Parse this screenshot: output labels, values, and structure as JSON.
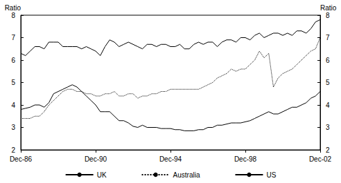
{
  "chart_data": {
    "type": "line",
    "ylabel": "Ratio",
    "y2label": "Ratio",
    "categories": [
      "Dec-86",
      null,
      null,
      null,
      null,
      null,
      null,
      null,
      null,
      null,
      null,
      null,
      null,
      null,
      null,
      null,
      "Dec-90",
      null,
      null,
      null,
      null,
      null,
      null,
      null,
      null,
      null,
      null,
      null,
      null,
      null,
      null,
      null,
      "Dec-94",
      null,
      null,
      null,
      null,
      null,
      null,
      null,
      null,
      null,
      null,
      null,
      null,
      null,
      null,
      null,
      "Dec-98",
      null,
      null,
      null,
      null,
      null,
      null,
      null,
      null,
      null,
      null,
      null,
      null,
      null,
      null,
      null,
      "Dec-02"
    ],
    "series": [
      {
        "name": "UK",
        "color": "#000000",
        "line_style": "solid",
        "values": [
          3.8,
          3.85,
          3.9,
          4.0,
          4.0,
          3.9,
          4.1,
          4.5,
          4.6,
          4.7,
          4.8,
          4.9,
          4.8,
          4.6,
          4.4,
          4.2,
          4.0,
          3.7,
          3.7,
          3.7,
          3.5,
          3.3,
          3.3,
          3.2,
          3.05,
          3.0,
          3.1,
          3.0,
          3.0,
          3.0,
          2.95,
          2.95,
          2.95,
          2.9,
          2.9,
          2.85,
          2.85,
          2.85,
          2.9,
          2.9,
          3.0,
          3.0,
          3.1,
          3.1,
          3.15,
          3.2,
          3.2,
          3.2,
          3.25,
          3.3,
          3.4,
          3.5,
          3.6,
          3.7,
          3.6,
          3.6,
          3.7,
          3.8,
          3.9,
          3.9,
          4.0,
          4.1,
          4.3,
          4.4,
          4.6
        ]
      },
      {
        "name": "Australia",
        "color": "#000000",
        "line_style": "dotted",
        "values": [
          3.4,
          3.4,
          3.4,
          3.5,
          3.5,
          3.7,
          4.0,
          4.2,
          4.4,
          4.6,
          4.7,
          4.7,
          4.6,
          4.6,
          4.5,
          4.5,
          4.4,
          4.4,
          4.5,
          4.5,
          4.6,
          4.4,
          4.4,
          4.5,
          4.5,
          4.3,
          4.4,
          4.4,
          4.5,
          4.5,
          4.6,
          4.6,
          4.7,
          4.7,
          4.7,
          4.7,
          4.7,
          4.7,
          4.7,
          4.8,
          4.9,
          5.0,
          5.2,
          5.3,
          5.4,
          5.6,
          5.5,
          5.6,
          5.6,
          5.8,
          6.0,
          6.4,
          6.1,
          6.3,
          4.8,
          5.2,
          5.4,
          5.5,
          5.6,
          5.8,
          6.0,
          6.2,
          6.4,
          6.5,
          7.0
        ]
      },
      {
        "name": "US",
        "color": "#000000",
        "line_style": "solid",
        "values": [
          6.3,
          6.2,
          6.4,
          6.6,
          6.6,
          6.5,
          6.8,
          6.8,
          6.8,
          6.6,
          6.6,
          6.6,
          6.6,
          6.5,
          6.6,
          6.5,
          6.4,
          6.2,
          6.6,
          6.9,
          6.8,
          6.6,
          6.7,
          6.8,
          6.7,
          6.6,
          6.5,
          6.7,
          6.7,
          6.6,
          6.7,
          6.7,
          6.6,
          6.6,
          6.7,
          6.5,
          6.5,
          6.7,
          6.8,
          6.7,
          6.8,
          6.8,
          6.6,
          6.8,
          6.9,
          6.9,
          6.8,
          7.0,
          7.0,
          6.9,
          7.1,
          7.2,
          7.0,
          7.1,
          7.2,
          7.2,
          7.1,
          7.2,
          7.1,
          7.3,
          7.3,
          7.2,
          7.4,
          7.7,
          7.8
        ]
      }
    ],
    "ylim": [
      2,
      8
    ],
    "yticks": [
      2,
      3,
      4,
      5,
      6,
      7,
      8
    ],
    "y2lim": [
      2,
      8
    ],
    "y2ticks": [
      2,
      3,
      4,
      5,
      6,
      7,
      8
    ],
    "grid": false,
    "legend": "bottom"
  }
}
